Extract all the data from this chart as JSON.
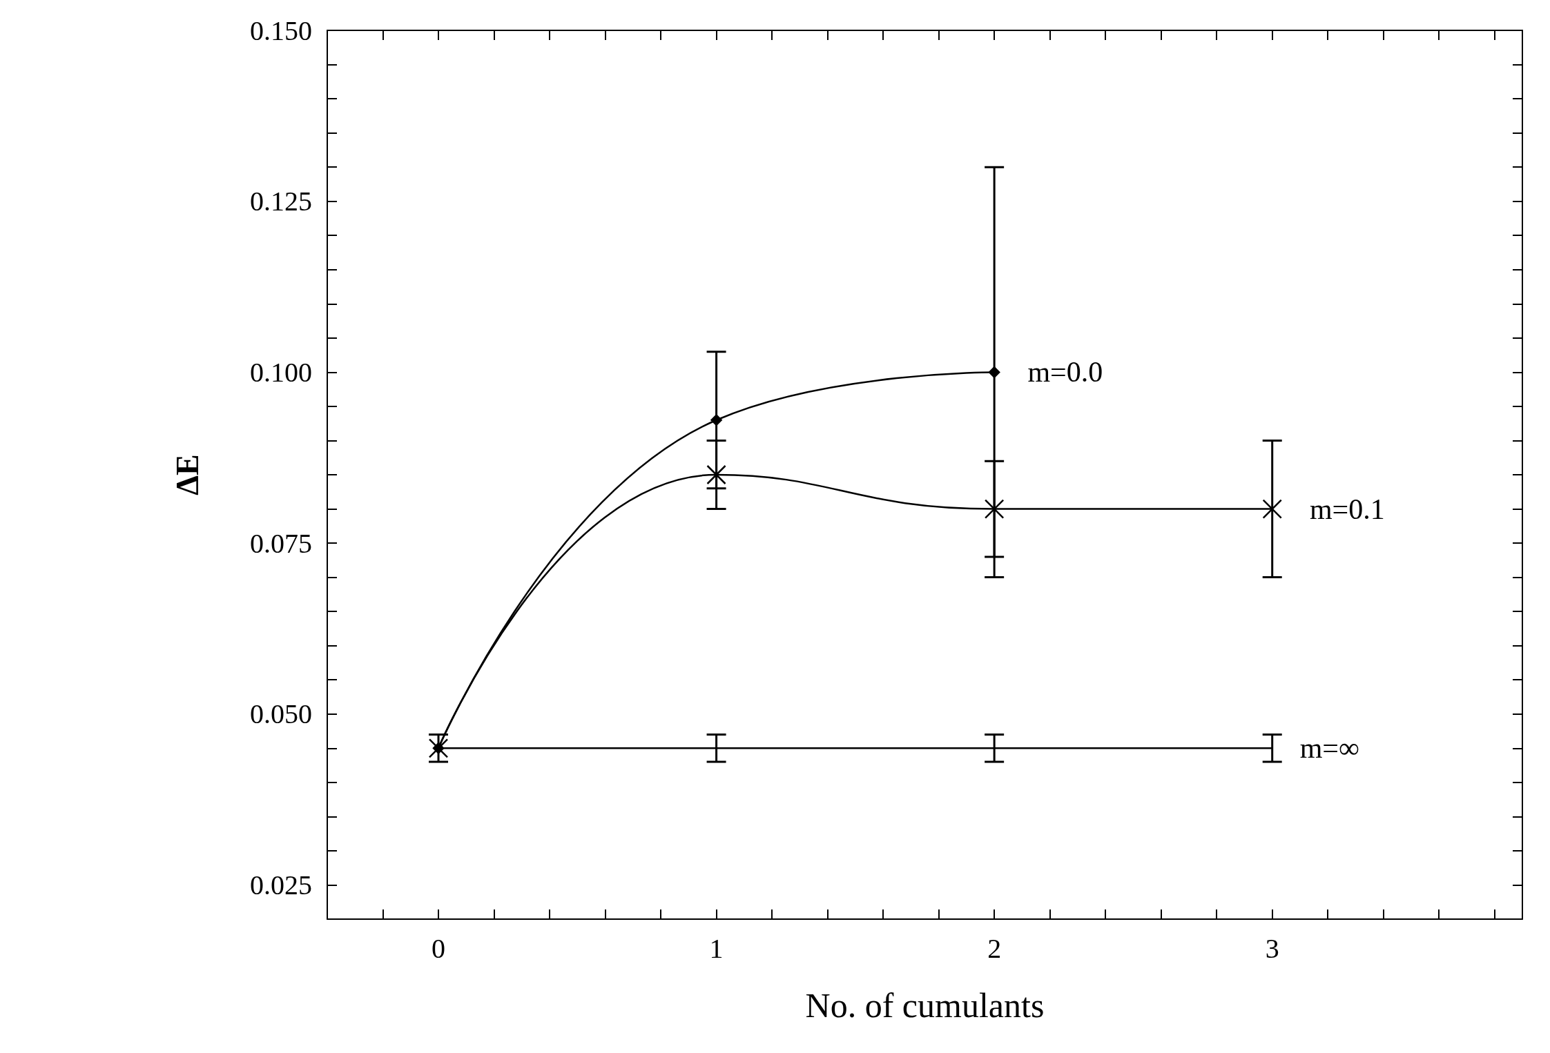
{
  "chart_data": {
    "type": "line",
    "xlabel": "No. of cumulants",
    "ylabel": "ΔE",
    "x": [
      0,
      1,
      2,
      3
    ],
    "xlim": [
      -0.4,
      3.9
    ],
    "xticks": [
      {
        "value": -0.2,
        "label": null
      },
      0,
      {
        "value": 0.2,
        "label": null
      },
      {
        "value": 0.4,
        "label": null
      },
      {
        "value": 0.6,
        "label": null
      },
      {
        "value": 0.8,
        "label": null
      },
      1,
      {
        "value": 1.2,
        "label": null
      },
      {
        "value": 1.4,
        "label": null
      },
      {
        "value": 1.6,
        "label": null
      },
      {
        "value": 1.8,
        "label": null
      },
      2,
      {
        "value": 2.2,
        "label": null
      },
      {
        "value": 2.4,
        "label": null
      },
      {
        "value": 2.6,
        "label": null
      },
      {
        "value": 2.8,
        "label": null
      },
      3,
      {
        "value": 3.2,
        "label": null
      },
      {
        "value": 3.4,
        "label": null
      },
      {
        "value": 3.6,
        "label": null
      },
      {
        "value": 3.8,
        "label": null
      }
    ],
    "ylim": [
      0.02,
      0.15
    ],
    "yticks": [
      {
        "value": 0.025,
        "label": "0.025"
      },
      {
        "value": 0.03,
        "label": null
      },
      {
        "value": 0.035,
        "label": null
      },
      {
        "value": 0.04,
        "label": null
      },
      {
        "value": 0.045,
        "label": null
      },
      {
        "value": 0.05,
        "label": "0.050"
      },
      {
        "value": 0.055,
        "label": null
      },
      {
        "value": 0.06,
        "label": null
      },
      {
        "value": 0.065,
        "label": null
      },
      {
        "value": 0.07,
        "label": null
      },
      {
        "value": 0.075,
        "label": "0.075"
      },
      {
        "value": 0.08,
        "label": null
      },
      {
        "value": 0.085,
        "label": null
      },
      {
        "value": 0.09,
        "label": null
      },
      {
        "value": 0.095,
        "label": null
      },
      {
        "value": 0.1,
        "label": "0.100"
      },
      {
        "value": 0.105,
        "label": null
      },
      {
        "value": 0.11,
        "label": null
      },
      {
        "value": 0.115,
        "label": null
      },
      {
        "value": 0.12,
        "label": null
      },
      {
        "value": 0.125,
        "label": "0.125"
      },
      {
        "value": 0.13,
        "label": null
      },
      {
        "value": 0.135,
        "label": null
      },
      {
        "value": 0.14,
        "label": null
      },
      {
        "value": 0.145,
        "label": null
      },
      {
        "value": 0.15,
        "label": "0.150"
      }
    ],
    "grid": false,
    "line_style": "solid",
    "series": [
      {
        "name": "m=0.0",
        "color": "#000000",
        "marker": "diamond",
        "values": [
          0.045,
          0.093,
          0.1,
          null
        ],
        "errors": [
          null,
          0.01,
          0.03,
          null
        ]
      },
      {
        "name": "m=0.1",
        "color": "#000000",
        "marker": "cross",
        "values": [
          0.045,
          0.085,
          0.08,
          0.08
        ],
        "errors": [
          null,
          0.005,
          0.007,
          0.01
        ]
      },
      {
        "name": "m=∞",
        "color": "#000000",
        "marker": "none",
        "values": [
          0.045,
          0.045,
          0.045,
          0.045
        ],
        "errors": [
          0.002,
          0.002,
          0.002,
          0.002
        ]
      }
    ]
  }
}
